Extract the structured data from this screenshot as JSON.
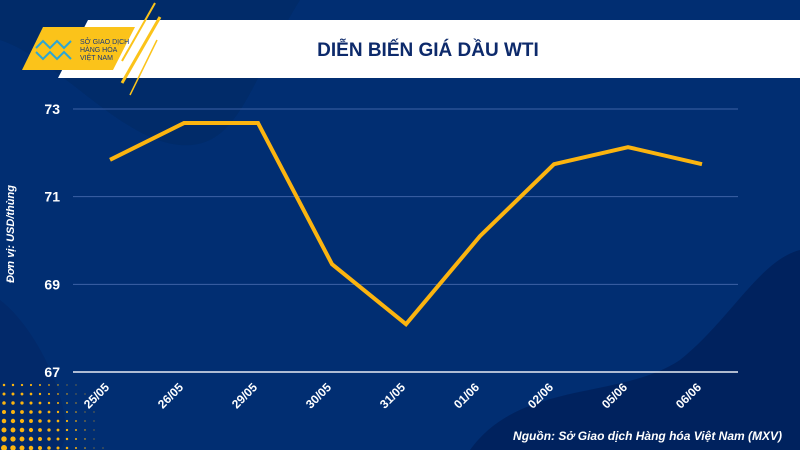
{
  "logo": {
    "lines": [
      "SỞ GIAO DỊCH",
      "HÀNG HÓA",
      "VIỆT NAM"
    ]
  },
  "colors": {
    "background": "#012e72",
    "line": "#fbb40f",
    "banner": "#ffffff",
    "logo_bg": "#fbc31a",
    "title": "#0d2a6b"
  },
  "chart_data": {
    "type": "line",
    "title": "DIỄN BIẾN GIÁ DẦU WTI",
    "ylabel": "Đơn vị: USD/thùng",
    "xlabel": "",
    "categories": [
      "25/05",
      "26/05",
      "29/05",
      "30/05",
      "31/05",
      "01/06",
      "02/06",
      "05/06",
      "06/06"
    ],
    "values": [
      71.84,
      72.68,
      72.68,
      69.46,
      68.09,
      70.1,
      71.74,
      72.13,
      71.74
    ],
    "ylim": [
      67,
      73
    ],
    "yticks": [
      67,
      69,
      71,
      73
    ],
    "grid": true
  },
  "source": "Nguồn: Sở Giao dịch Hàng hóa Việt Nam (MXV)"
}
